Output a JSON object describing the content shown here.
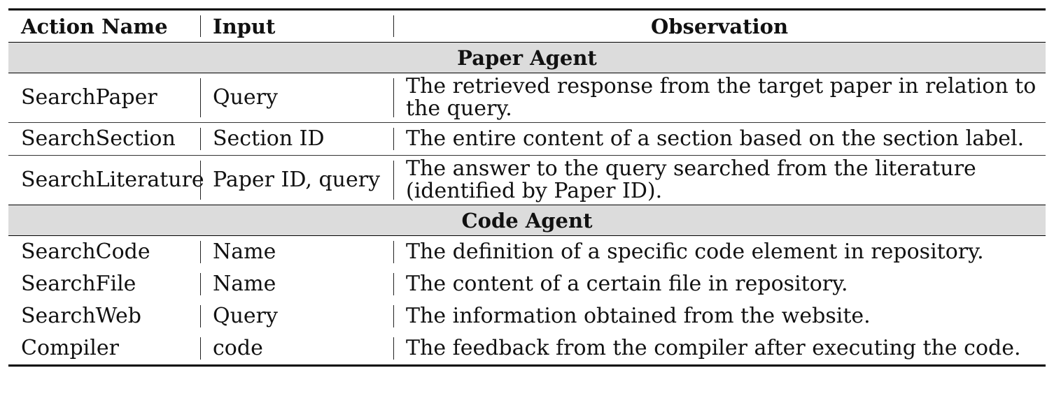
{
  "table": {
    "headers": [
      "Action Name",
      "Input",
      "Observation"
    ],
    "sections": [
      {
        "title": "Paper Agent",
        "rows": [
          {
            "action": "SearchPaper",
            "input": "Query",
            "observation": "The retrieved response from the target paper in relation to the query."
          },
          {
            "action": "SearchSection",
            "input": "Section ID",
            "observation": "The entire content of a section based on the section label."
          },
          {
            "action": "SearchLiterature",
            "input": "Paper ID, query",
            "observation": "The answer to the query searched from the literature (identified by Paper ID)."
          }
        ]
      },
      {
        "title": "Code Agent",
        "rows": [
          {
            "action": "SearchCode",
            "input": "Name",
            "observation": "The definition of a specific code element in repository."
          },
          {
            "action": "SearchFile",
            "input": "Name",
            "observation": "The content of a certain file in repository."
          },
          {
            "action": "SearchWeb",
            "input": "Query",
            "observation": "The information obtained from the website."
          },
          {
            "action": "Compiler",
            "input": "code",
            "observation": "The feedback from the compiler after executing the code."
          }
        ]
      }
    ]
  }
}
